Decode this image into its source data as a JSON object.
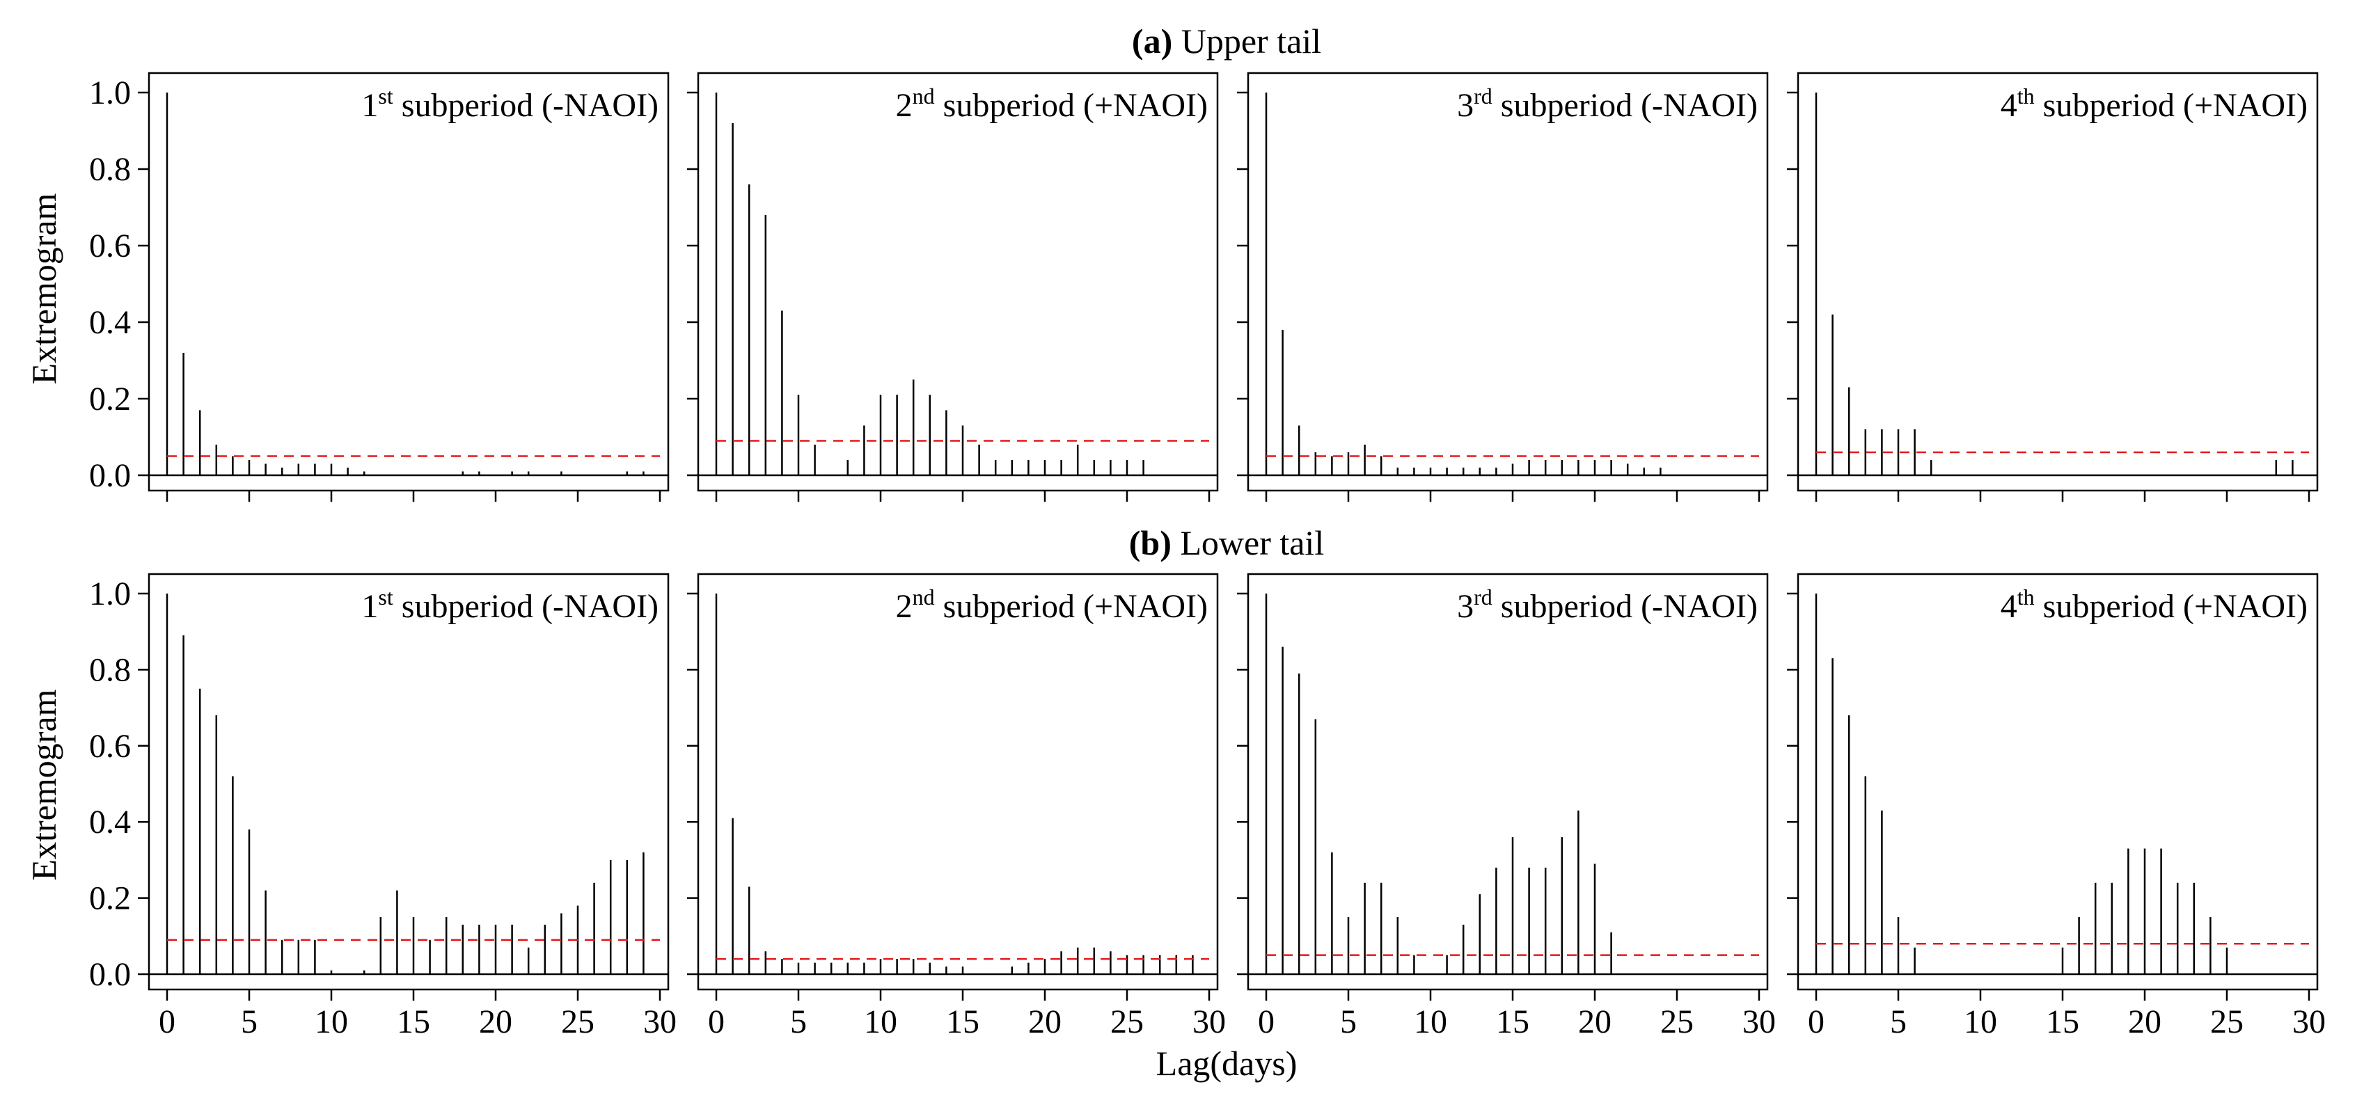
{
  "figure": {
    "xlabel": "Lag(days)",
    "ylabel": "Extremogram",
    "xticks": [
      0,
      5,
      10,
      15,
      20,
      25,
      30
    ],
    "yticks": [
      "0.0",
      "0.2",
      "0.4",
      "0.6",
      "0.8",
      "1.0"
    ],
    "colors": {
      "bars": "#000000",
      "threshold": "#e41a1c"
    }
  },
  "chart_data": [
    {
      "type": "bar",
      "row_label": "(a)",
      "row_title": "Upper tail",
      "panels": [
        {
          "label_num": "1",
          "label_sup": "st",
          "label_text": " subperiod (-NAOI)",
          "xlim": [
            0,
            30
          ],
          "ylim": [
            0,
            1
          ],
          "lags": [
            0,
            1,
            2,
            3,
            4,
            5,
            6,
            7,
            8,
            9,
            10,
            11,
            12,
            13,
            14,
            15,
            16,
            17,
            18,
            19,
            20,
            21,
            22,
            23,
            24,
            25,
            26,
            27,
            28,
            29
          ],
          "values": [
            1.0,
            0.32,
            0.17,
            0.08,
            0.05,
            0.04,
            0.03,
            0.02,
            0.03,
            0.03,
            0.03,
            0.02,
            0.01,
            0,
            0,
            0,
            0,
            0,
            0.01,
            0.01,
            0,
            0.01,
            0.01,
            0,
            0.01,
            0,
            0,
            0,
            0.01,
            0.01
          ],
          "threshold": 0.05
        },
        {
          "label_num": "2",
          "label_sup": "nd",
          "label_text": " subperiod (+NAOI)",
          "xlim": [
            0,
            30
          ],
          "ylim": [
            0,
            1
          ],
          "lags": [
            0,
            1,
            2,
            3,
            4,
            5,
            6,
            7,
            8,
            9,
            10,
            11,
            12,
            13,
            14,
            15,
            16,
            17,
            18,
            19,
            20,
            21,
            22,
            23,
            24,
            25,
            26,
            27,
            28,
            29
          ],
          "values": [
            1.0,
            0.92,
            0.76,
            0.68,
            0.43,
            0.21,
            0.08,
            0,
            0.04,
            0.13,
            0.21,
            0.21,
            0.25,
            0.21,
            0.17,
            0.13,
            0.08,
            0.04,
            0.04,
            0.04,
            0.04,
            0.04,
            0.08,
            0.04,
            0.04,
            0.04,
            0.04,
            0,
            0,
            0
          ],
          "threshold": 0.09
        },
        {
          "label_num": "3",
          "label_sup": "rd",
          "label_text": " subperiod (-NAOI)",
          "xlim": [
            0,
            30
          ],
          "ylim": [
            0,
            1
          ],
          "lags": [
            0,
            1,
            2,
            3,
            4,
            5,
            6,
            7,
            8,
            9,
            10,
            11,
            12,
            13,
            14,
            15,
            16,
            17,
            18,
            19,
            20,
            21,
            22,
            23,
            24,
            25,
            26,
            27,
            28,
            29
          ],
          "values": [
            1.0,
            0.38,
            0.13,
            0.06,
            0.05,
            0.06,
            0.08,
            0.05,
            0.02,
            0.02,
            0.02,
            0.02,
            0.02,
            0.02,
            0.02,
            0.03,
            0.04,
            0.04,
            0.04,
            0.04,
            0.04,
            0.04,
            0.03,
            0.02,
            0.02,
            0,
            0,
            0,
            0,
            0
          ],
          "threshold": 0.05
        },
        {
          "label_num": "4",
          "label_sup": "th",
          "label_text": " subperiod (+NAOI)",
          "xlim": [
            0,
            30
          ],
          "ylim": [
            0,
            1
          ],
          "lags": [
            0,
            1,
            2,
            3,
            4,
            5,
            6,
            7,
            8,
            9,
            10,
            11,
            12,
            13,
            14,
            15,
            16,
            17,
            18,
            19,
            20,
            21,
            22,
            23,
            24,
            25,
            26,
            27,
            28,
            29
          ],
          "values": [
            1.0,
            0.42,
            0.23,
            0.12,
            0.12,
            0.12,
            0.12,
            0.04,
            0,
            0,
            0,
            0,
            0,
            0,
            0,
            0,
            0,
            0,
            0,
            0,
            0,
            0,
            0,
            0,
            0,
            0,
            0,
            0,
            0.04,
            0.04
          ],
          "threshold": 0.06
        }
      ]
    },
    {
      "type": "bar",
      "row_label": "(b)",
      "row_title": "Lower tail",
      "panels": [
        {
          "label_num": "1",
          "label_sup": "st",
          "label_text": " subperiod (-NAOI)",
          "xlim": [
            0,
            30
          ],
          "ylim": [
            0,
            1
          ],
          "lags": [
            0,
            1,
            2,
            3,
            4,
            5,
            6,
            7,
            8,
            9,
            10,
            11,
            12,
            13,
            14,
            15,
            16,
            17,
            18,
            19,
            20,
            21,
            22,
            23,
            24,
            25,
            26,
            27,
            28,
            29
          ],
          "values": [
            1.0,
            0.89,
            0.75,
            0.68,
            0.52,
            0.38,
            0.22,
            0.09,
            0.09,
            0.09,
            0.01,
            0,
            0.01,
            0.15,
            0.22,
            0.15,
            0.09,
            0.15,
            0.13,
            0.13,
            0.13,
            0.13,
            0.07,
            0.13,
            0.16,
            0.18,
            0.24,
            0.3,
            0.3,
            0.32
          ],
          "threshold": 0.09
        },
        {
          "label_num": "2",
          "label_sup": "nd",
          "label_text": " subperiod (+NAOI)",
          "xlim": [
            0,
            30
          ],
          "ylim": [
            0,
            1
          ],
          "lags": [
            0,
            1,
            2,
            3,
            4,
            5,
            6,
            7,
            8,
            9,
            10,
            11,
            12,
            13,
            14,
            15,
            16,
            17,
            18,
            19,
            20,
            21,
            22,
            23,
            24,
            25,
            26,
            27,
            28,
            29
          ],
          "values": [
            1.0,
            0.41,
            0.23,
            0.06,
            0.04,
            0.03,
            0.03,
            0.03,
            0.03,
            0.03,
            0.04,
            0.04,
            0.04,
            0.03,
            0.02,
            0.02,
            0,
            0,
            0.02,
            0.03,
            0.04,
            0.06,
            0.07,
            0.07,
            0.06,
            0.05,
            0.05,
            0.05,
            0.05,
            0.05
          ],
          "threshold": 0.04
        },
        {
          "label_num": "3",
          "label_sup": "rd",
          "label_text": " subperiod (-NAOI)",
          "xlim": [
            0,
            30
          ],
          "ylim": [
            0,
            1
          ],
          "lags": [
            0,
            1,
            2,
            3,
            4,
            5,
            6,
            7,
            8,
            9,
            10,
            11,
            12,
            13,
            14,
            15,
            16,
            17,
            18,
            19,
            20,
            21,
            22,
            23,
            24,
            25,
            26,
            27,
            28,
            29
          ],
          "values": [
            1.0,
            0.86,
            0.79,
            0.67,
            0.32,
            0.15,
            0.24,
            0.24,
            0.15,
            0.05,
            0,
            0.05,
            0.13,
            0.21,
            0.28,
            0.36,
            0.28,
            0.28,
            0.36,
            0.43,
            0.29,
            0.11,
            0,
            0,
            0,
            0,
            0,
            0,
            0,
            0
          ],
          "threshold": 0.05
        },
        {
          "label_num": "4",
          "label_sup": "th",
          "label_text": " subperiod (+NAOI)",
          "xlim": [
            0,
            30
          ],
          "ylim": [
            0,
            1
          ],
          "lags": [
            0,
            1,
            2,
            3,
            4,
            5,
            6,
            7,
            8,
            9,
            10,
            11,
            12,
            13,
            14,
            15,
            16,
            17,
            18,
            19,
            20,
            21,
            22,
            23,
            24,
            25,
            26,
            27,
            28,
            29
          ],
          "values": [
            1.0,
            0.83,
            0.68,
            0.52,
            0.43,
            0.15,
            0.07,
            0,
            0,
            0,
            0,
            0,
            0,
            0,
            0,
            0.07,
            0.15,
            0.24,
            0.24,
            0.33,
            0.33,
            0.33,
            0.24,
            0.24,
            0.15,
            0.07,
            0,
            0,
            0,
            0
          ],
          "threshold": 0.08
        }
      ]
    }
  ]
}
